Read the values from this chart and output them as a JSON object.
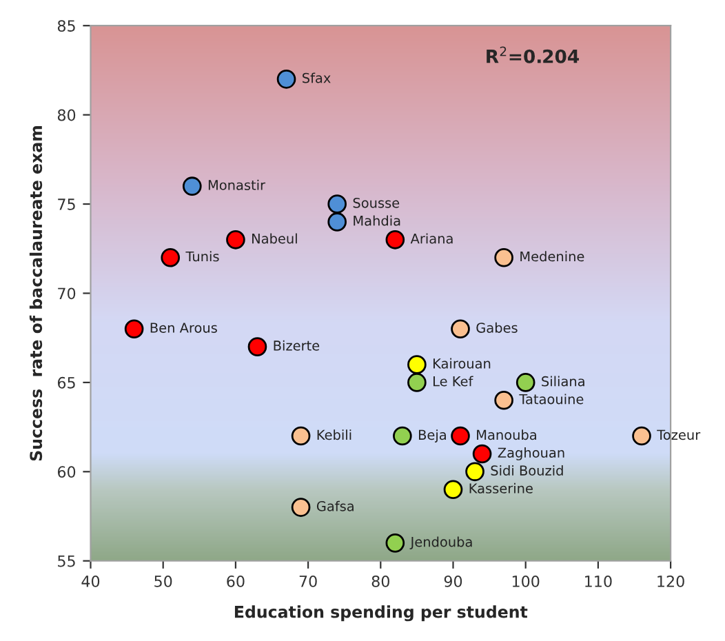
{
  "chart_data": {
    "type": "scatter",
    "xlabel": "Education spending per student",
    "ylabel": "Success  rate of baccalaureate exam",
    "xlim": [
      40,
      120
    ],
    "xticks": [
      40,
      50,
      60,
      70,
      80,
      90,
      100,
      110,
      120
    ],
    "ylim": [
      55,
      85
    ],
    "yticks": [
      55,
      60,
      65,
      70,
      75,
      80,
      85
    ],
    "grid": false,
    "legend": false,
    "marker": "circle",
    "series": [
      {
        "color": "#4f8fd6",
        "x": [
          67,
          54,
          74,
          74
        ],
        "values": [
          82,
          76,
          75,
          74
        ]
      },
      {
        "color": "#ff0000",
        "x": [
          60,
          51,
          46,
          63,
          82,
          91,
          94
        ],
        "values": [
          73,
          72,
          68,
          67,
          73,
          62,
          61
        ]
      },
      {
        "color": "#fac090",
        "x": [
          97,
          91,
          69,
          69,
          97,
          116
        ],
        "values": [
          72,
          68,
          62,
          58,
          64,
          62
        ]
      },
      {
        "color": "#ffff00",
        "x": [
          85,
          93,
          90
        ],
        "values": [
          66,
          60,
          59
        ]
      },
      {
        "color": "#92d050",
        "x": [
          85,
          100,
          83,
          82
        ],
        "values": [
          65,
          65,
          62,
          56
        ]
      }
    ],
    "annotations": [
      "R$^{2}$=0.204",
      {
        "text": "Sfax",
        "x": 67,
        "y": 82
      },
      {
        "text": "Monastir",
        "x": 54,
        "y": 76
      },
      {
        "text": "Sousse",
        "x": 74,
        "y": 75
      },
      {
        "text": "Mahdia",
        "x": 74,
        "y": 74
      },
      {
        "text": "Nabeul",
        "x": 60,
        "y": 73
      },
      {
        "text": "Tunis",
        "x": 51,
        "y": 72
      },
      {
        "text": "Ben Arous",
        "x": 46,
        "y": 68
      },
      {
        "text": "Bizerte",
        "x": 63,
        "y": 67
      },
      {
        "text": "Ariana",
        "x": 82,
        "y": 73
      },
      {
        "text": "Manouba",
        "x": 91,
        "y": 62
      },
      {
        "text": "Zaghouan",
        "x": 94,
        "y": 61
      },
      {
        "text": "Medenine",
        "x": 97,
        "y": 72
      },
      {
        "text": "Gabes",
        "x": 91,
        "y": 68
      },
      {
        "text": "Kebili",
        "x": 69,
        "y": 62
      },
      {
        "text": "Gafsa",
        "x": 69,
        "y": 58
      },
      {
        "text": "Tataouine",
        "x": 97,
        "y": 64
      },
      {
        "text": "Tozeur",
        "x": 116,
        "y": 62
      },
      {
        "text": "Kairouan",
        "x": 85,
        "y": 66
      },
      {
        "text": "Sidi Bouzid",
        "x": 93,
        "y": 60
      },
      {
        "text": "Kasserine",
        "x": 90,
        "y": 59
      },
      {
        "text": "Le Kef",
        "x": 85,
        "y": 65
      },
      {
        "text": "Siliana",
        "x": 100,
        "y": 65
      },
      {
        "text": "Beja",
        "x": 83,
        "y": 62
      },
      {
        "text": "Jendouba",
        "x": 82,
        "y": 56
      }
    ]
  }
}
